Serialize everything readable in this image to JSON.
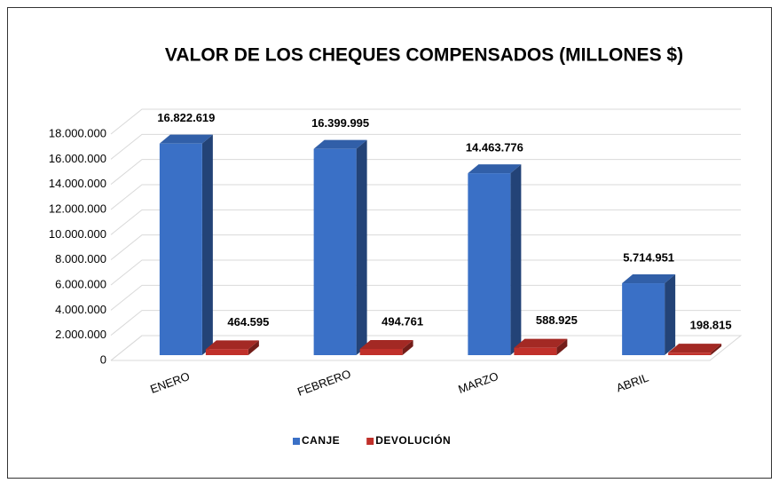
{
  "chart_data": {
    "type": "bar3d",
    "title": "VALOR DE LOS CHEQUES COMPENSADOS (MILLONES $)",
    "categories": [
      "ENERO",
      "FEBRERO",
      "MARZO",
      "ABRIL"
    ],
    "series": [
      {
        "name": "CANJE",
        "color": "#3a70c6",
        "values": [
          16822619,
          16399995,
          14463776,
          5714951
        ],
        "value_labels": [
          "16.822.619",
          "16.399.995",
          "14.463.776",
          "5.714.951"
        ]
      },
      {
        "name": "DEVOLUCIÓN",
        "color": "#c0302a",
        "values": [
          464595,
          494761,
          588925,
          198815
        ],
        "value_labels": [
          "464.595",
          "494.761",
          "588.925",
          "198.815"
        ]
      }
    ],
    "ylim": [
      0,
      18000000
    ],
    "yticks": [
      0,
      {
        "value": 2000000,
        "label": "2.000.000"
      },
      {
        "value": 4000000,
        "label": "4.000.000"
      },
      {
        "value": 6000000,
        "label": "6.000.000"
      },
      {
        "value": 8000000,
        "label": "8.000.000"
      },
      {
        "value": 10000000,
        "label": "10.000.000"
      },
      {
        "value": 12000000,
        "label": "12.000.000"
      },
      {
        "value": 14000000,
        "label": "14.000.000"
      },
      {
        "value": 16000000,
        "label": "16.000.000"
      },
      {
        "value": 18000000,
        "label": "18.000.000"
      }
    ],
    "grid": true,
    "legend": "bottom"
  }
}
